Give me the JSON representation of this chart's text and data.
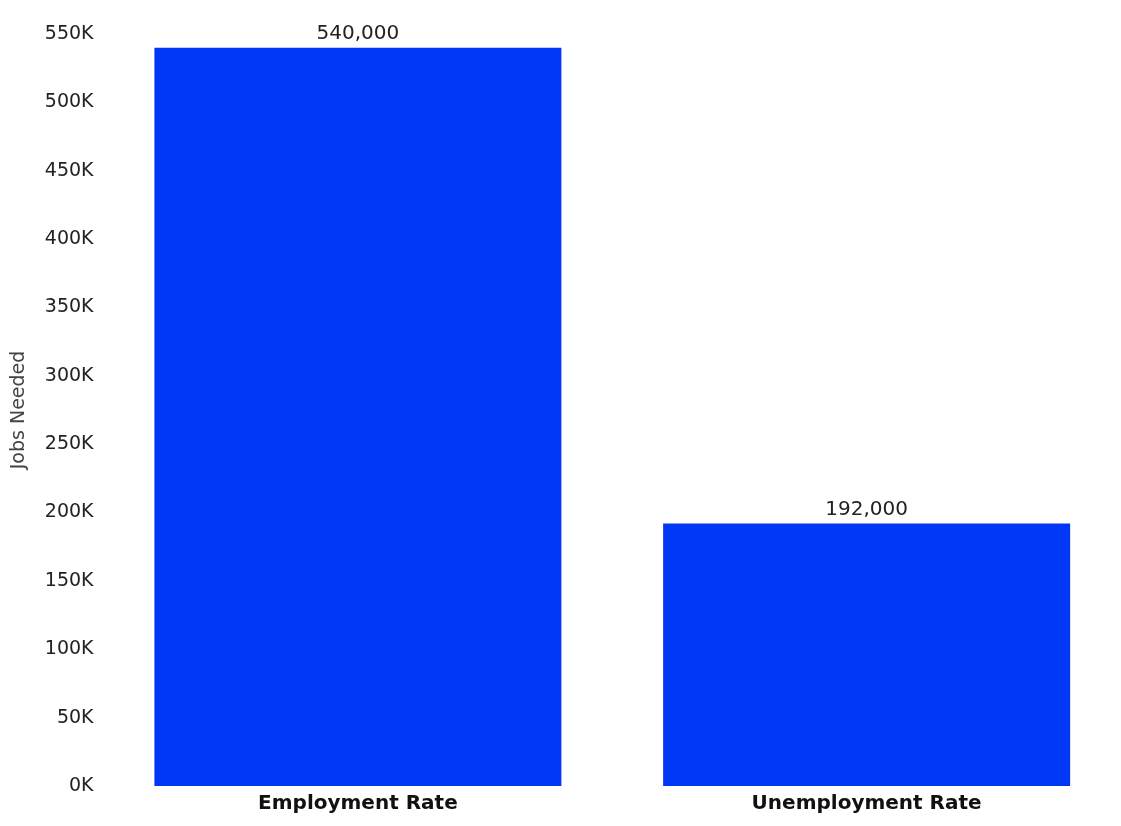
{
  "chart_data": {
    "type": "bar",
    "ylabel": "Jobs Needed",
    "categories": [
      "Employment Rate",
      "Unemployment Rate"
    ],
    "values": [
      540000,
      192000
    ],
    "color": "#0037f5",
    "ylim": [
      0,
      550000
    ],
    "yticks": [
      {
        "value": 0,
        "label": "0K"
      },
      {
        "value": 50000,
        "label": "50K"
      },
      {
        "value": 100000,
        "label": "100K"
      },
      {
        "value": 150000,
        "label": "150K"
      },
      {
        "value": 200000,
        "label": "200K"
      },
      {
        "value": 250000,
        "label": "250K"
      },
      {
        "value": 300000,
        "label": "300K"
      },
      {
        "value": 350000,
        "label": "350K"
      },
      {
        "value": 400000,
        "label": "400K"
      },
      {
        "value": 450000,
        "label": "450K"
      },
      {
        "value": 500000,
        "label": "500K"
      },
      {
        "value": 550000,
        "label": "550K"
      }
    ],
    "value_labels": [
      "540,000",
      "192,000"
    ],
    "grid": false,
    "legend": false
  }
}
